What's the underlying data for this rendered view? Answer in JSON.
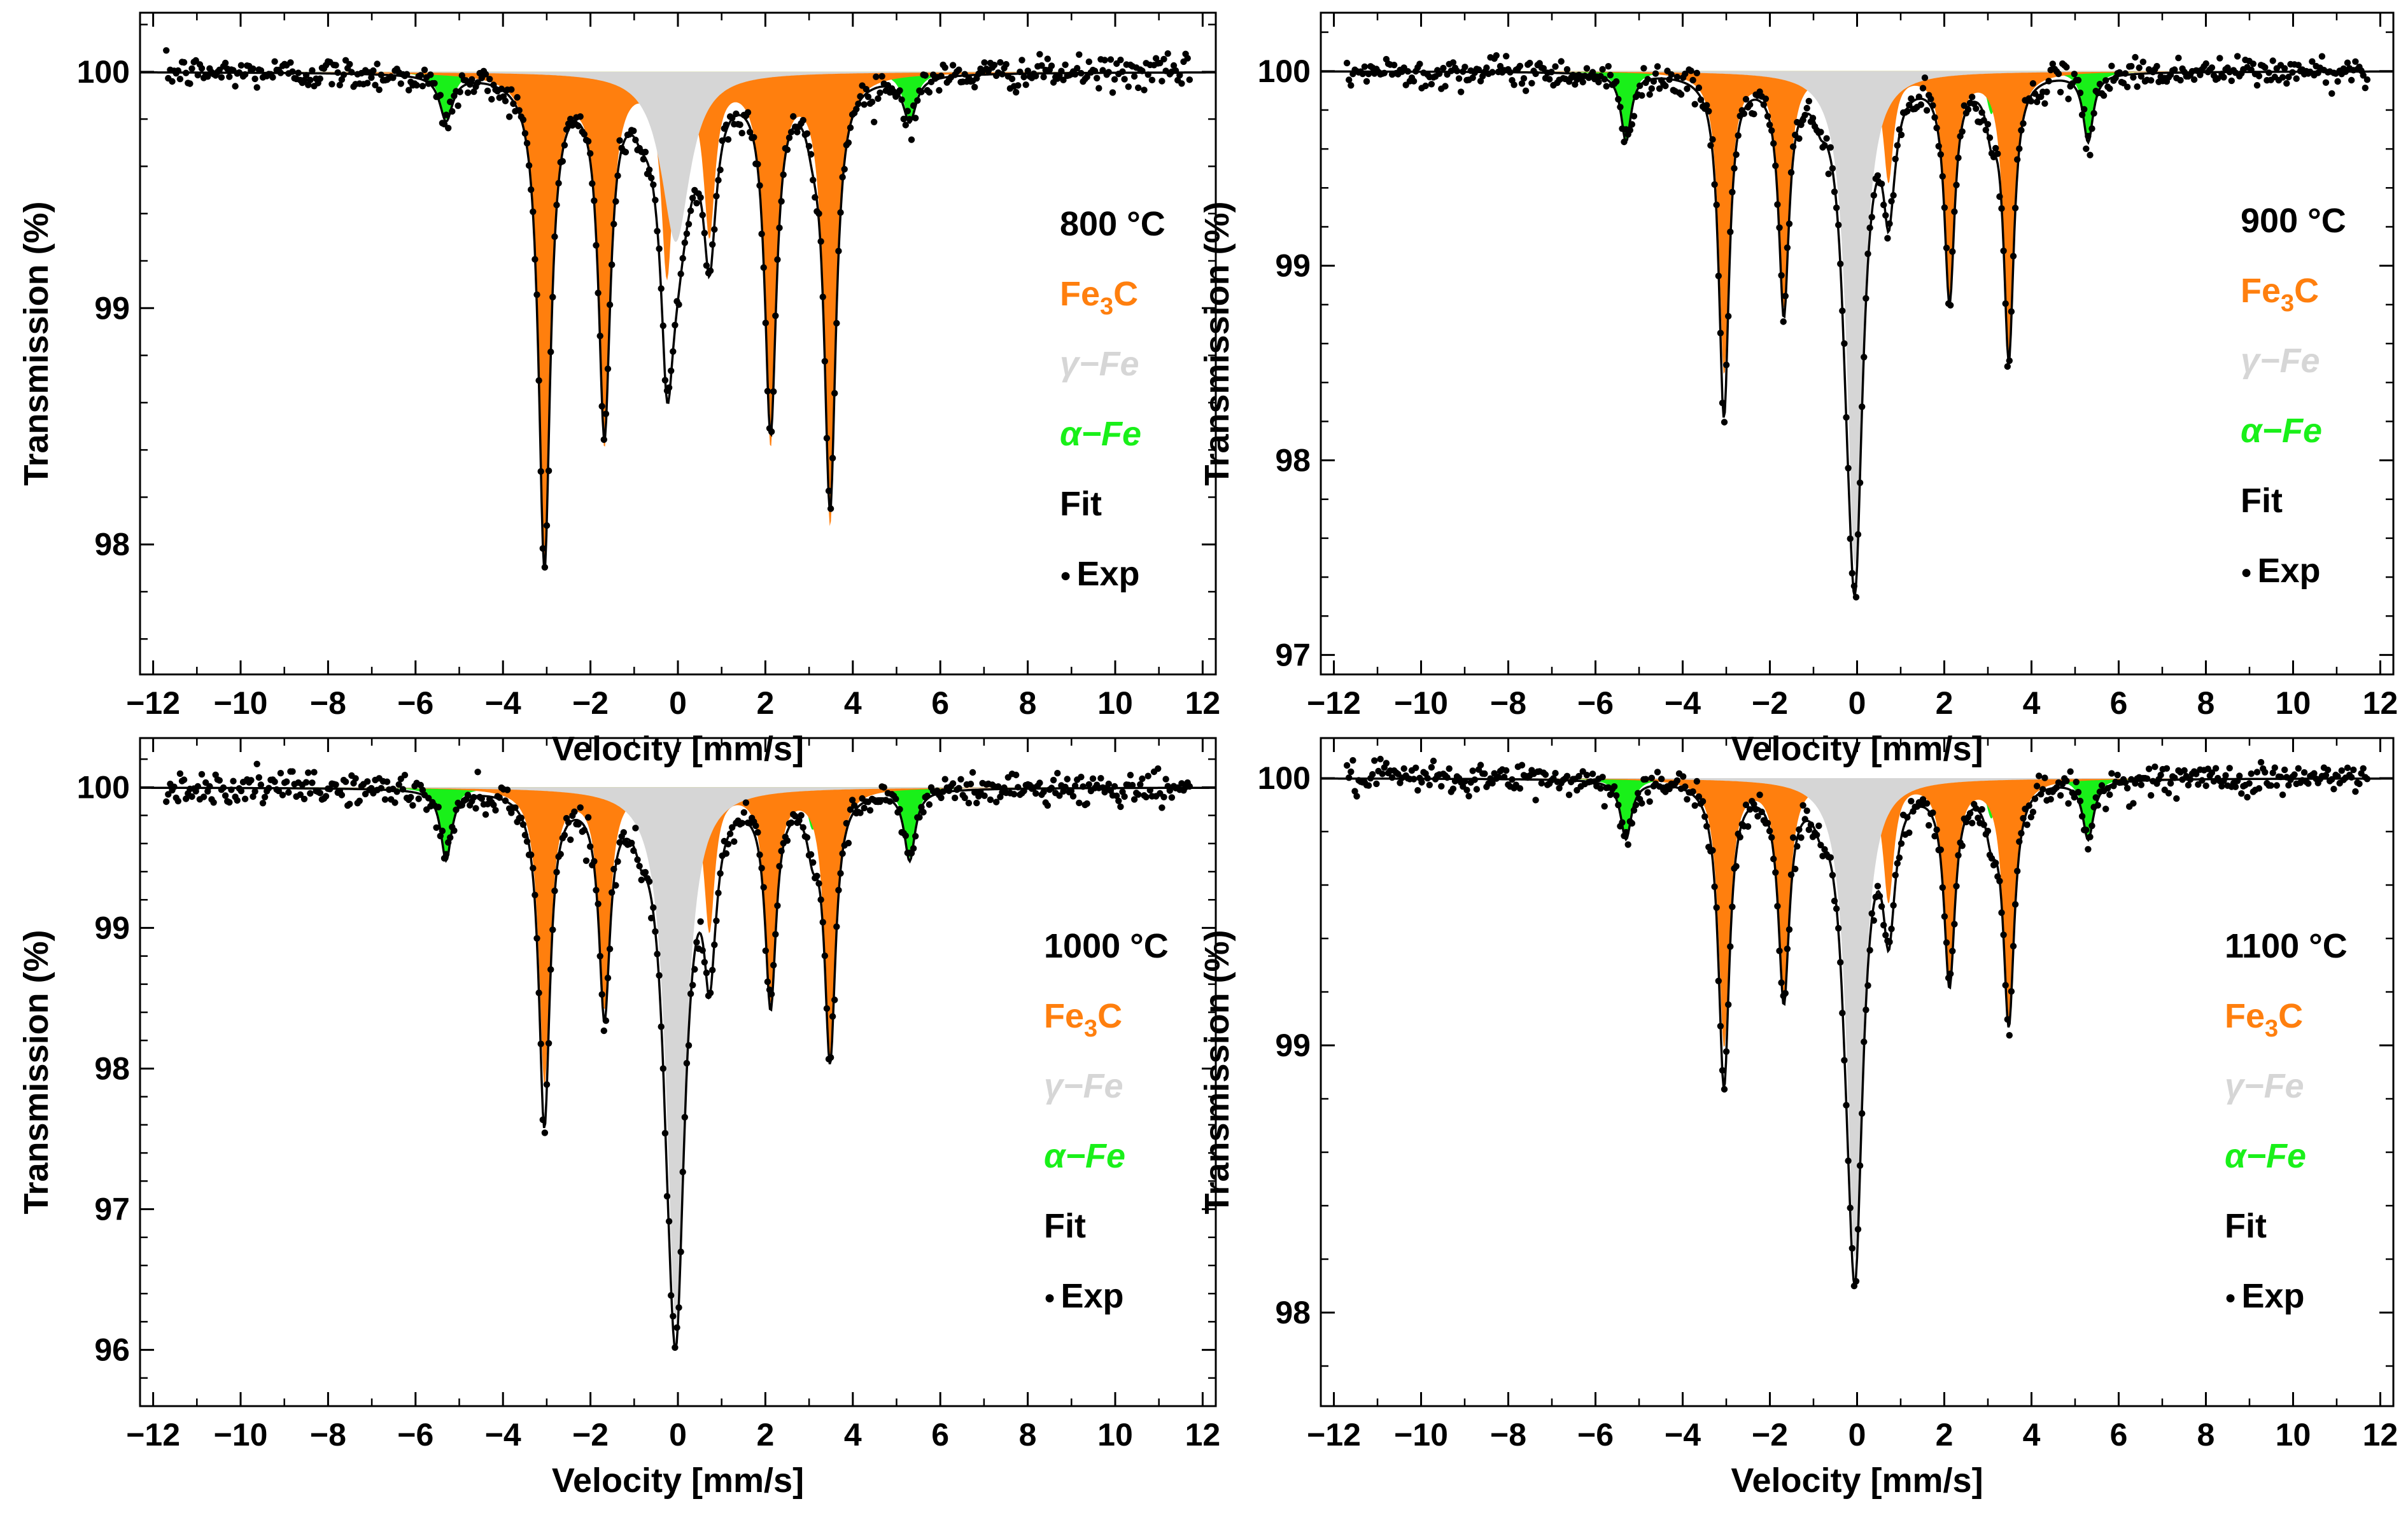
{
  "colors": {
    "fe3c": "#ff7f0e",
    "gamma": "#d6d6d6",
    "alpha": "#19f019",
    "fit": "#000000",
    "exp": "#000000",
    "temperature": "#000000"
  },
  "labels": {
    "ylabel": "Transmission (%)",
    "xlabel": "Velocity [mm/s]",
    "legend": {
      "fe3c_main": "Fe",
      "fe3c_sub": "3",
      "fe3c_tail": "C",
      "gamma": "γ−Fe",
      "alpha": "α−Fe",
      "fit": "Fit",
      "exp": "Exp",
      "exp_marker": "●"
    }
  },
  "chart_data": [
    {
      "type": "line",
      "title": "800 °C",
      "xlabel": "Velocity [mm/s]",
      "ylabel": "Transmission (%)",
      "xlim": [
        -12.3,
        12.3
      ],
      "ylim": [
        97.45,
        100.25
      ],
      "x_ticks": [
        -12,
        -10,
        -8,
        -6,
        -4,
        -2,
        0,
        2,
        4,
        6,
        8,
        10,
        12
      ],
      "x_tick_labels": [
        "−12",
        "−10",
        "−8",
        "−6",
        "−4",
        "−2",
        "0",
        "2",
        "4",
        "6",
        "8",
        "10",
        "12"
      ],
      "y_ticks": [
        98,
        99,
        100
      ],
      "y_tick_labels": [
        "98",
        "99",
        "100"
      ],
      "fit_minimum": 97.9,
      "series": [
        {
          "name": "Fe3C",
          "color_key": "fe3c",
          "positions": [
            -3.05,
            -1.68,
            -0.25,
            0.72,
            2.12,
            3.48
          ],
          "depths": [
            2.05,
            1.55,
            0.83,
            0.65,
            1.55,
            1.9
          ],
          "width": 0.16
        },
        {
          "name": "γ−Fe",
          "color_key": "gamma",
          "positions": [
            -0.05
          ],
          "depths": [
            0.72
          ],
          "width": 0.4
        },
        {
          "name": "α−Fe",
          "color_key": "alpha",
          "positions": [
            -5.3,
            -3.08,
            -0.84,
            0.84,
            3.08,
            5.3
          ],
          "depths": [
            0.2,
            0.13,
            0.07,
            0.07,
            0.13,
            0.2
          ],
          "width": 0.18
        }
      ]
    },
    {
      "type": "line",
      "title": "900 °C",
      "xlabel": "Velocity [mm/s]",
      "ylabel": "Transmission (%)",
      "xlim": [
        -12.3,
        12.3
      ],
      "ylim": [
        96.9,
        100.3
      ],
      "x_ticks": [
        -12,
        -10,
        -8,
        -6,
        -4,
        -2,
        0,
        2,
        4,
        6,
        8,
        10,
        12
      ],
      "x_tick_labels": [
        "−12",
        "−10",
        "−8",
        "−6",
        "−4",
        "−2",
        "0",
        "2",
        "4",
        "6",
        "8",
        "10",
        "12"
      ],
      "y_ticks": [
        97,
        98,
        99,
        100
      ],
      "y_tick_labels": [
        "97",
        "98",
        "99",
        "100"
      ],
      "fit_minimum": 97.3,
      "series": [
        {
          "name": "Fe3C",
          "color_key": "fe3c",
          "positions": [
            -3.05,
            -1.68,
            -0.25,
            0.72,
            2.12,
            3.48
          ],
          "depths": [
            1.55,
            1.2,
            0.35,
            0.55,
            1.15,
            1.45
          ],
          "width": 0.14
        },
        {
          "name": "γ−Fe",
          "color_key": "gamma",
          "positions": [
            -0.05
          ],
          "depths": [
            2.55
          ],
          "width": 0.22
        },
        {
          "name": "α−Fe",
          "color_key": "alpha",
          "positions": [
            -5.3,
            -3.08,
            -0.84,
            0.84,
            3.08,
            5.3
          ],
          "depths": [
            0.35,
            0.22,
            0.1,
            0.1,
            0.22,
            0.35
          ],
          "width": 0.14
        }
      ]
    },
    {
      "type": "line",
      "title": "1000 °C",
      "xlabel": "Velocity [mm/s]",
      "ylabel": "Transmission (%)",
      "xlim": [
        -12.3,
        12.3
      ],
      "ylim": [
        95.6,
        100.35
      ],
      "x_ticks": [
        -12,
        -10,
        -8,
        -6,
        -4,
        -2,
        0,
        2,
        4,
        6,
        8,
        10,
        12
      ],
      "x_tick_labels": [
        "−12",
        "−10",
        "−8",
        "−6",
        "−4",
        "−2",
        "0",
        "2",
        "4",
        "6",
        "8",
        "10",
        "12"
      ],
      "y_ticks": [
        96,
        97,
        98,
        99,
        100
      ],
      "y_tick_labels": [
        "96",
        "97",
        "98",
        "99",
        "100"
      ],
      "fit_minimum": 96.0,
      "series": [
        {
          "name": "Fe3C",
          "color_key": "fe3c",
          "positions": [
            -3.05,
            -1.68,
            -0.25,
            0.72,
            2.12,
            3.48
          ],
          "depths": [
            2.1,
            1.55,
            0.4,
            1.0,
            1.5,
            1.9
          ],
          "width": 0.15
        },
        {
          "name": "γ−Fe",
          "color_key": "gamma",
          "positions": [
            -0.05
          ],
          "depths": [
            3.8
          ],
          "width": 0.25
        },
        {
          "name": "α−Fe",
          "color_key": "alpha",
          "positions": [
            -5.3,
            -3.08,
            -0.84,
            0.84,
            3.08,
            5.3
          ],
          "depths": [
            0.5,
            0.3,
            0.15,
            0.15,
            0.3,
            0.5
          ],
          "width": 0.15
        }
      ]
    },
    {
      "type": "line",
      "title": "1100 °C",
      "xlabel": "Velocity [mm/s]",
      "ylabel": "Transmission (%)",
      "xlim": [
        -12.3,
        12.3
      ],
      "ylim": [
        97.65,
        100.15
      ],
      "x_ticks": [
        -12,
        -10,
        -8,
        -6,
        -4,
        -2,
        0,
        2,
        4,
        6,
        8,
        10,
        12
      ],
      "x_tick_labels": [
        "−12",
        "−10",
        "−8",
        "−6",
        "−4",
        "−2",
        "0",
        "2",
        "4",
        "6",
        "8",
        "10",
        "12"
      ],
      "y_ticks": [
        98,
        99,
        100
      ],
      "y_tick_labels": [
        "98",
        "99",
        "100"
      ],
      "fit_minimum": 98.1,
      "series": [
        {
          "name": "Fe3C",
          "color_key": "fe3c",
          "positions": [
            -3.05,
            -1.68,
            -0.25,
            0.72,
            2.12,
            3.48
          ],
          "depths": [
            1.0,
            0.8,
            0.2,
            0.45,
            0.75,
            0.9
          ],
          "width": 0.15
        },
        {
          "name": "γ−Fe",
          "color_key": "gamma",
          "positions": [
            -0.05
          ],
          "depths": [
            1.8
          ],
          "width": 0.22
        },
        {
          "name": "α−Fe",
          "color_key": "alpha",
          "positions": [
            -5.3,
            -3.08,
            -0.84,
            0.84,
            3.08,
            5.3
          ],
          "depths": [
            0.22,
            0.15,
            0.07,
            0.07,
            0.15,
            0.22
          ],
          "width": 0.15
        }
      ]
    }
  ]
}
